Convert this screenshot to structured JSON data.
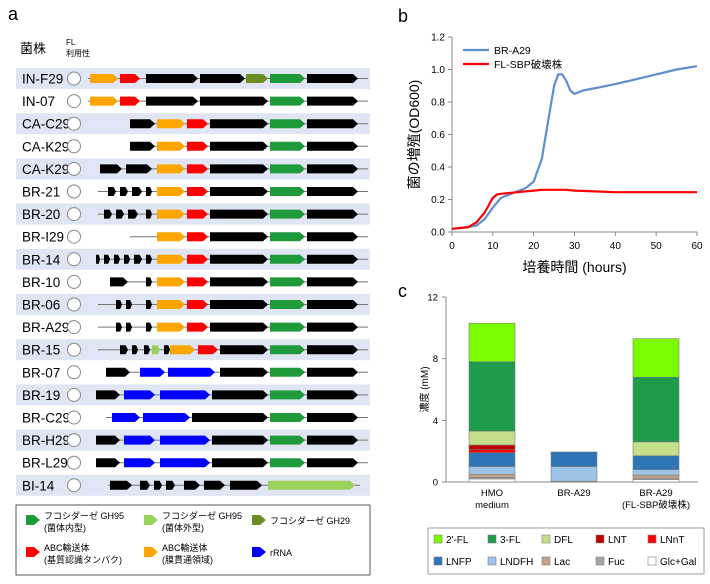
{
  "panel_labels": {
    "a": "a",
    "b": "b",
    "c": "c"
  },
  "colors": {
    "gh95_intra": "#1f9a3a",
    "gh95_extra": "#9bd25b",
    "gh29": "#6b8e23",
    "abc_sbp": "#ff0000",
    "abc_tm": "#ffa500",
    "rrna": "#0000ff",
    "other_gene": "#000000",
    "row_band": "#dfe5f2",
    "line_br_a29": "#5b8fcf",
    "line_fl_sbp": "#ff0000"
  },
  "panel_a": {
    "header_strain": "菌株",
    "header_fl_line1": "FL",
    "header_fl_line2": "利用性",
    "strains": [
      {
        "name": "IN-F29",
        "band": true
      },
      {
        "name": "IN-07",
        "band": false
      },
      {
        "name": "CA-C29",
        "band": true
      },
      {
        "name": "CA-K29a",
        "band": false
      },
      {
        "name": "CA-K29b",
        "band": true
      },
      {
        "name": "BR-21",
        "band": false
      },
      {
        "name": "BR-20",
        "band": true
      },
      {
        "name": "BR-I29",
        "band": false
      },
      {
        "name": "BR-14",
        "band": true
      },
      {
        "name": "BR-10",
        "band": false
      },
      {
        "name": "BR-06",
        "band": true
      },
      {
        "name": "BR-A29",
        "band": false
      },
      {
        "name": "BR-15",
        "band": true
      },
      {
        "name": "BR-07",
        "band": false
      },
      {
        "name": "BR-19",
        "band": true
      },
      {
        "name": "BR-C29",
        "band": false
      },
      {
        "name": "BR-H29",
        "band": true
      },
      {
        "name": "BR-L29",
        "band": false
      },
      {
        "name": "BI-14",
        "band": true
      }
    ],
    "legend": [
      {
        "key": "gh95_intra",
        "line1": "フコシダーゼ GH95",
        "line2": "(菌体内型)",
        "icon": "green-arrow-icon"
      },
      {
        "key": "gh95_extra",
        "line1": "フコシダーゼ GH95",
        "line2": "(菌体外型)",
        "icon": "light-green-arrow-icon"
      },
      {
        "key": "gh29",
        "line1": "フコシダーゼ GH29",
        "line2": "",
        "icon": "olive-arrow-icon"
      },
      {
        "key": "abc_sbp",
        "line1": "ABC輸送体",
        "line2": "(基質認識タンパク)",
        "icon": "red-arrow-icon"
      },
      {
        "key": "abc_tm",
        "line1": "ABC輸送体",
        "line2": "(膜貫通領域)",
        "icon": "orange-arrow-icon"
      },
      {
        "key": "rrna",
        "line1": "rRNA",
        "line2": "",
        "icon": "blue-arrow-icon"
      }
    ]
  },
  "chart_data": [
    {
      "type": "line",
      "title": "",
      "xlabel": "培養時間 (hours)",
      "ylabel": "菌の増殖(OD600)",
      "xlim": [
        0,
        60
      ],
      "ylim": [
        0,
        1.2
      ],
      "xticks": [
        0,
        10,
        20,
        30,
        40,
        50,
        60
      ],
      "yticks": [
        0.0,
        0.2,
        0.4,
        0.6,
        0.8,
        1.0,
        1.2
      ],
      "ytick_labels": [
        "0.0",
        "0.2",
        "0.4",
        "0.6",
        "0.8",
        "1.0",
        "1.2"
      ],
      "legend_position": "top-left",
      "series": [
        {
          "name": "BR-A29",
          "color_key": "line_br_a29",
          "x": [
            0,
            4,
            6,
            8,
            10,
            12,
            14,
            16,
            18,
            20,
            22,
            24,
            25,
            26,
            27,
            28,
            29,
            30,
            32,
            34,
            36,
            40,
            45,
            50,
            55,
            60
          ],
          "y": [
            0.02,
            0.03,
            0.04,
            0.08,
            0.15,
            0.21,
            0.23,
            0.25,
            0.27,
            0.31,
            0.45,
            0.75,
            0.9,
            0.97,
            0.97,
            0.93,
            0.87,
            0.85,
            0.87,
            0.88,
            0.89,
            0.91,
            0.94,
            0.97,
            1.0,
            1.02
          ]
        },
        {
          "name": "FL-SBP破壊株",
          "color_key": "line_fl_sbp",
          "x": [
            0,
            4,
            6,
            8,
            10,
            11,
            12,
            14,
            16,
            18,
            20,
            22,
            25,
            28,
            30,
            35,
            40,
            45,
            50,
            55,
            60
          ],
          "y": [
            0.02,
            0.03,
            0.06,
            0.12,
            0.21,
            0.23,
            0.235,
            0.24,
            0.245,
            0.25,
            0.255,
            0.26,
            0.26,
            0.26,
            0.255,
            0.25,
            0.245,
            0.245,
            0.245,
            0.245,
            0.245
          ]
        }
      ]
    },
    {
      "type": "bar",
      "stacked": true,
      "title": "",
      "xlabel": "",
      "ylabel": "濃度 (mM)",
      "ylim": [
        0,
        12
      ],
      "yticks": [
        0,
        4,
        8,
        12
      ],
      "categories": [
        {
          "line1": "HMO",
          "line2": "medium"
        },
        {
          "line1": "BR-A29",
          "line2": ""
        },
        {
          "line1": "BR-A29",
          "line2": "(FL-SBP破壊株)"
        }
      ],
      "series": [
        {
          "name": "Glc+Gal",
          "color": "#ffffff",
          "values": [
            0.2,
            0.0,
            0.15
          ]
        },
        {
          "name": "Fuc",
          "color": "#a6a6a6",
          "values": [
            0.1,
            0.0,
            0.1
          ]
        },
        {
          "name": "Lac",
          "color": "#c4a484",
          "values": [
            0.2,
            0.05,
            0.2
          ]
        },
        {
          "name": "LNDFH",
          "color": "#9dc3e6",
          "values": [
            0.5,
            0.95,
            0.35
          ]
        },
        {
          "name": "LNFP",
          "color": "#2e75b6",
          "values": [
            0.9,
            0.95,
            0.9
          ]
        },
        {
          "name": "LNnT",
          "color": "#ff0000",
          "values": [
            0.2,
            0.0,
            0.0
          ]
        },
        {
          "name": "LNT",
          "color": "#c00000",
          "values": [
            0.3,
            0.0,
            0.0
          ]
        },
        {
          "name": "DFL",
          "color": "#c5e08a",
          "values": [
            0.9,
            0.0,
            0.9
          ]
        },
        {
          "name": "3-FL",
          "color": "#1e9b4b",
          "values": [
            4.5,
            0.0,
            4.2
          ]
        },
        {
          "name": "2'-FL",
          "color": "#7cfc00",
          "values": [
            2.5,
            0.0,
            2.5
          ]
        }
      ],
      "legend_order": [
        "2'-FL",
        "3-FL",
        "DFL",
        "LNT",
        "LNnT",
        "LNFP",
        "LNDFH",
        "Lac",
        "Fuc",
        "Glc+Gal"
      ],
      "legend_position": "bottom"
    }
  ]
}
